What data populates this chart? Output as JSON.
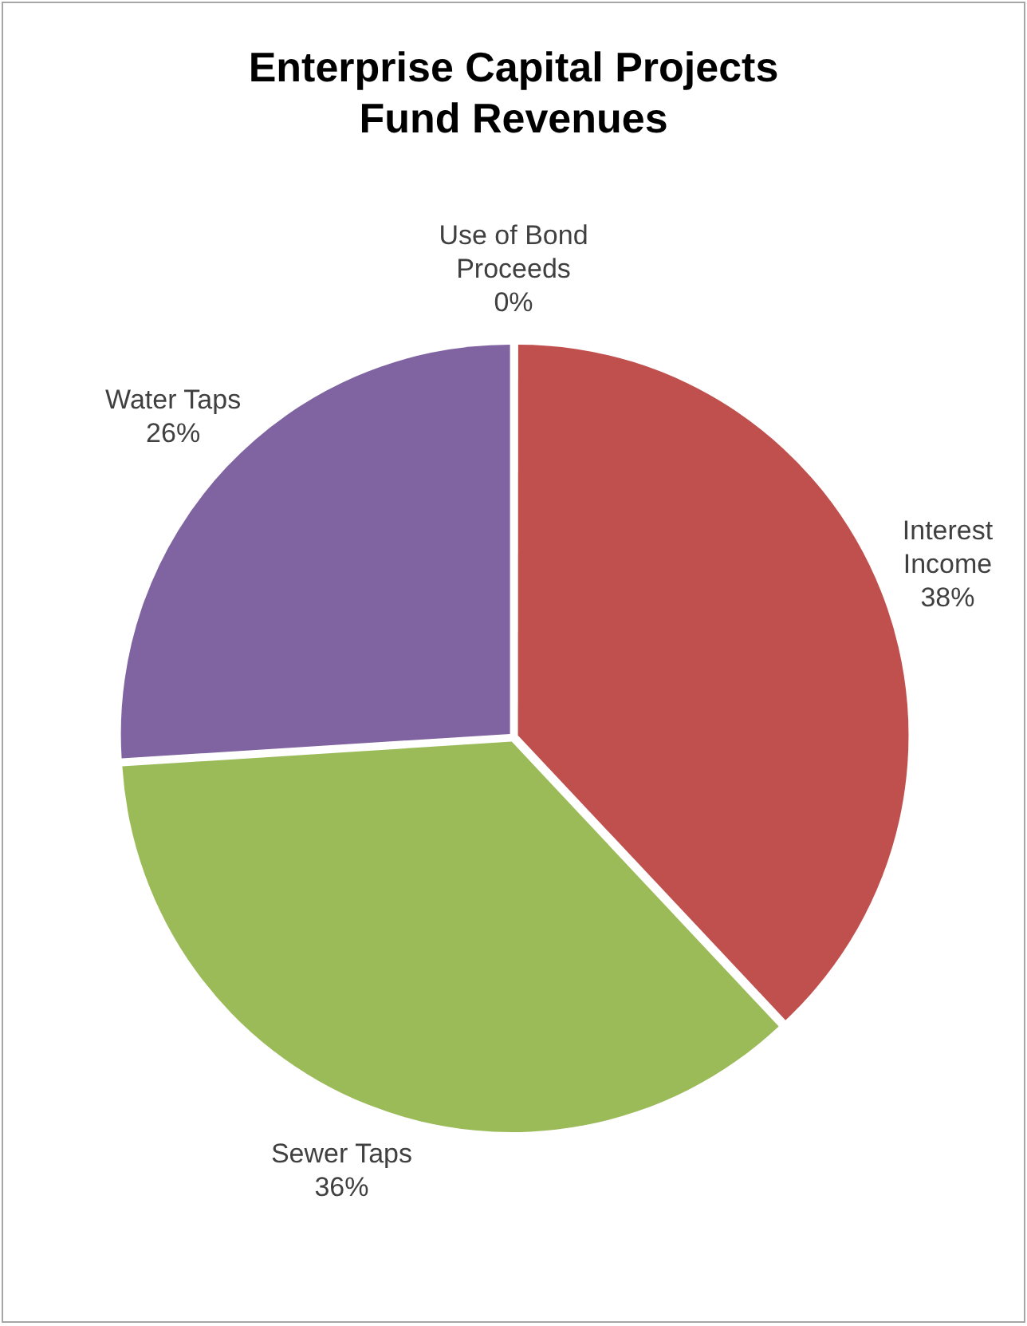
{
  "chart_data": {
    "type": "pie",
    "title": "Enterprise Capital Projects Fund Revenues",
    "categories": [
      "Use of Bond Proceeds",
      "Interest Income",
      "Sewer Taps",
      "Water Taps"
    ],
    "values": [
      0,
      38,
      36,
      26
    ],
    "value_labels": [
      "0%",
      "38%",
      "36%",
      "26%"
    ],
    "colors": [
      "#4f81bd",
      "#c0504d",
      "#9bbb59",
      "#8064a2"
    ]
  }
}
